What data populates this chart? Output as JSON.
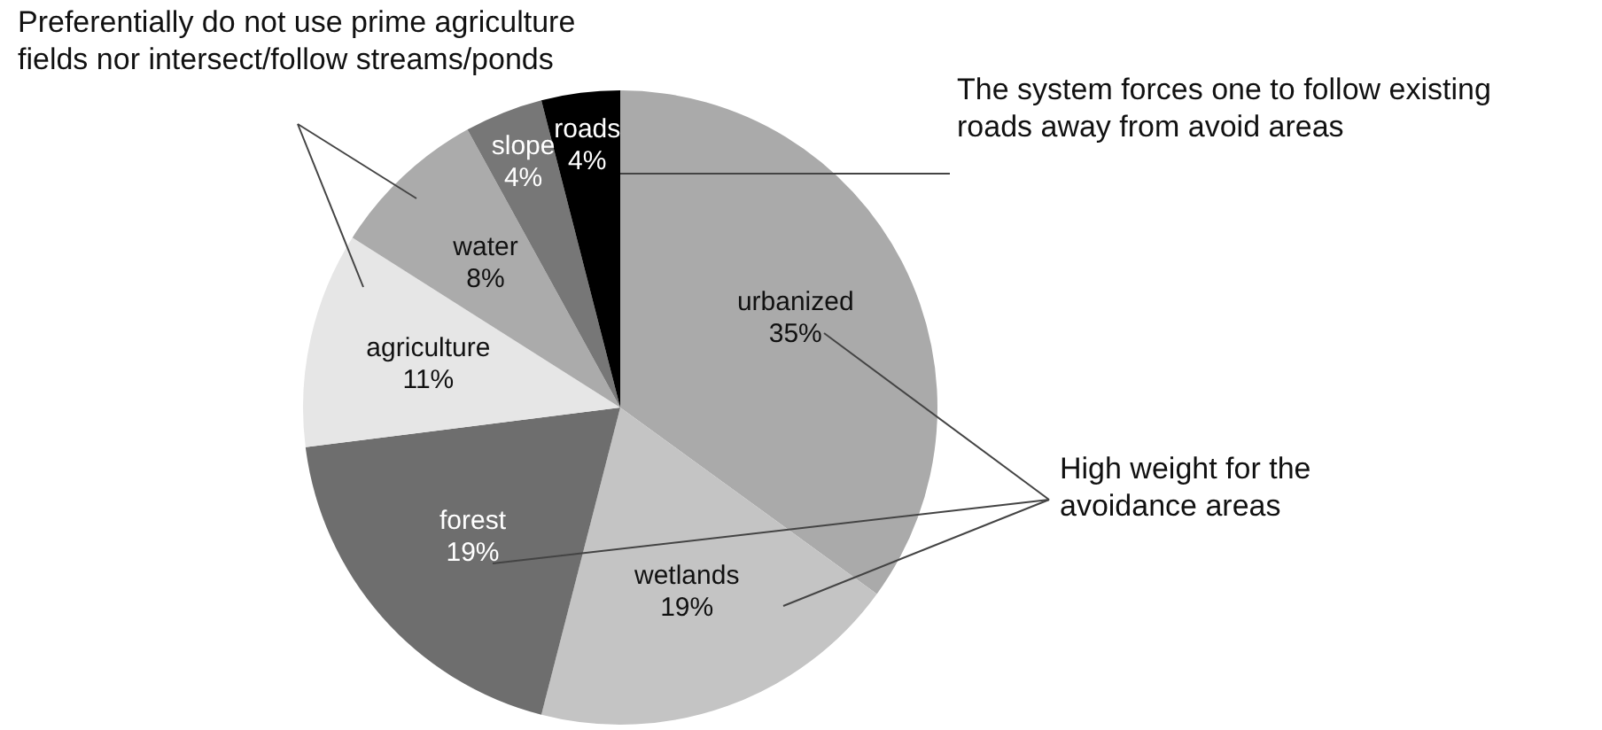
{
  "chart_data": {
    "type": "pie",
    "categories": [
      "urbanized",
      "wetlands",
      "forest",
      "agriculture",
      "water",
      "slope",
      "roads"
    ],
    "values": [
      35,
      19,
      19,
      11,
      8,
      4,
      4
    ],
    "value_labels": [
      "35%",
      "19%",
      "19%",
      "11%",
      "8%",
      "4%",
      "4%"
    ],
    "colors": [
      "#aaaaaa",
      "#c4c4c4",
      "#6e6e6e",
      "#e6e6e6",
      "#ababab",
      "#777777",
      "#000000"
    ],
    "legend": false,
    "annotations": [
      "Preferentially do not use prime agriculture fields nor intersect/follow streams/ponds",
      "The system forces one to follow existing roads away from avoid areas",
      "High weight for the avoidance areas"
    ]
  }
}
